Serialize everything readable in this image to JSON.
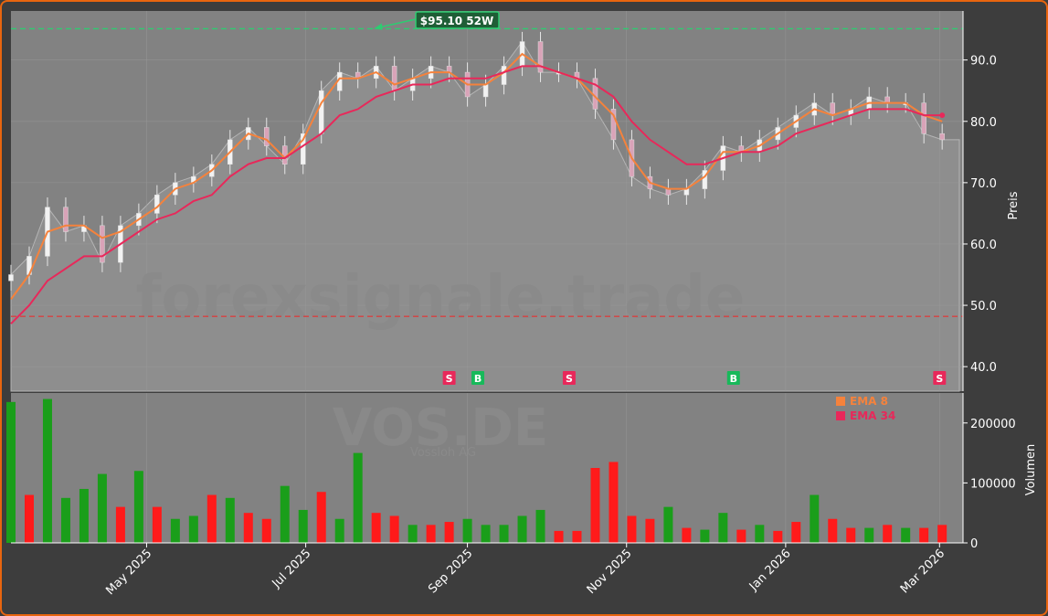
{
  "chart_data": [
    {
      "type": "candlestick",
      "title": "",
      "ylabel": "Preis",
      "ylim": [
        36,
        98
      ],
      "yticks": [
        40,
        50,
        60,
        70,
        80,
        90
      ],
      "ytick_labels": [
        "40.0",
        "50.0",
        "60.0",
        "70.0",
        "80.0",
        "90.0"
      ],
      "xticks": [
        "2025-05-01",
        "2025-07-01",
        "2025-09-01",
        "2025-11-01",
        "2026-01-01",
        "2026-03-01"
      ],
      "xtick_labels": [
        "May 2025",
        "Jul 2025",
        "Sep 2025",
        "Nov 2025",
        "Jan 2026",
        "Mar 2026"
      ],
      "xlim": [
        "2025-03-10",
        "2026-03-10"
      ],
      "grid": true,
      "watermark": "forexsignale.trade",
      "high_52w": {
        "value": 95.1,
        "label": "$95.10 52W",
        "date": "2025-07-27",
        "color": "#2ecc71"
      },
      "low_52w": {
        "value": 48.2,
        "color": "#d84040"
      },
      "close_price": {
        "dates": [
          "2025-03-10",
          "2025-03-17",
          "2025-03-24",
          "2025-03-31",
          "2025-04-07",
          "2025-04-14",
          "2025-04-21",
          "2025-04-28",
          "2025-05-05",
          "2025-05-12",
          "2025-05-19",
          "2025-05-26",
          "2025-06-02",
          "2025-06-09",
          "2025-06-16",
          "2025-06-23",
          "2025-06-30",
          "2025-07-07",
          "2025-07-14",
          "2025-07-21",
          "2025-07-28",
          "2025-08-04",
          "2025-08-11",
          "2025-08-18",
          "2025-08-25",
          "2025-09-01",
          "2025-09-08",
          "2025-09-15",
          "2025-09-22",
          "2025-09-29",
          "2025-10-06",
          "2025-10-13",
          "2025-10-20",
          "2025-10-27",
          "2025-11-03",
          "2025-11-10",
          "2025-11-17",
          "2025-11-24",
          "2025-12-01",
          "2025-12-08",
          "2025-12-15",
          "2025-12-22",
          "2025-12-29",
          "2026-01-05",
          "2026-01-12",
          "2026-01-19",
          "2026-01-26",
          "2026-02-02",
          "2026-02-09",
          "2026-02-16",
          "2026-02-23",
          "2026-03-02"
        ],
        "values": [
          55,
          58,
          66,
          62,
          63,
          57,
          63,
          65,
          68,
          70,
          71,
          73,
          77,
          79,
          76,
          73,
          78,
          85,
          88,
          87,
          89,
          85,
          87,
          89,
          88,
          84,
          86,
          89,
          93,
          88,
          88,
          87,
          82,
          77,
          71,
          69,
          68,
          69,
          72,
          76,
          75,
          77,
          79,
          81,
          83,
          81,
          82,
          84,
          83,
          83,
          78,
          77
        ]
      },
      "series": [
        {
          "name": "EMA 8",
          "color": "#f5823c",
          "values": [
            51,
            55,
            62,
            63,
            63,
            61,
            62,
            64,
            66,
            69,
            70,
            72,
            75,
            78,
            77,
            74,
            77,
            83,
            87,
            87,
            88,
            86,
            87,
            88,
            88,
            86,
            86,
            88,
            91,
            89,
            88,
            87,
            84,
            81,
            74,
            70,
            69,
            69,
            71,
            75,
            75,
            76,
            78,
            80,
            82,
            81,
            82,
            83,
            83,
            83,
            81,
            80
          ]
        },
        {
          "name": "EMA 34",
          "color": "#e8285a",
          "values": [
            47,
            50,
            54,
            56,
            58,
            58,
            60,
            62,
            64,
            65,
            67,
            68,
            71,
            73,
            74,
            74,
            76,
            78,
            81,
            82,
            84,
            85,
            86,
            86,
            87,
            87,
            87,
            88,
            89,
            89,
            88,
            87,
            86,
            84,
            80,
            77,
            75,
            73,
            73,
            74,
            75,
            75,
            76,
            78,
            79,
            80,
            81,
            82,
            82,
            82,
            81,
            81
          ]
        }
      ],
      "signals": [
        {
          "date": "2025-08-25",
          "type": "S",
          "color": "#e8285a"
        },
        {
          "date": "2025-09-05",
          "type": "B",
          "color": "#17b95a"
        },
        {
          "date": "2025-10-10",
          "type": "S",
          "color": "#e8285a"
        },
        {
          "date": "2025-12-12",
          "type": "B",
          "color": "#17b95a"
        },
        {
          "date": "2026-03-01",
          "type": "S",
          "color": "#e8285a"
        }
      ]
    },
    {
      "type": "bar",
      "title": "",
      "ylabel": "Volumen",
      "ylim": [
        0,
        250000
      ],
      "yticks": [
        0,
        100000,
        200000
      ],
      "ytick_labels": [
        "0",
        "100000",
        "200000"
      ],
      "watermark": "VOS.DE",
      "watermark_sub": "Vossloh AG",
      "up_color": "#1a9e1a",
      "down_color": "#ff1a1a",
      "dates": [
        "2025-03-10",
        "2025-03-17",
        "2025-03-24",
        "2025-03-31",
        "2025-04-07",
        "2025-04-14",
        "2025-04-21",
        "2025-04-28",
        "2025-05-05",
        "2025-05-12",
        "2025-05-19",
        "2025-05-26",
        "2025-06-02",
        "2025-06-09",
        "2025-06-16",
        "2025-06-23",
        "2025-06-30",
        "2025-07-07",
        "2025-07-14",
        "2025-07-21",
        "2025-07-28",
        "2025-08-04",
        "2025-08-11",
        "2025-08-18",
        "2025-08-25",
        "2025-09-01",
        "2025-09-08",
        "2025-09-15",
        "2025-09-22",
        "2025-09-29",
        "2025-10-06",
        "2025-10-13",
        "2025-10-20",
        "2025-10-27",
        "2025-11-03",
        "2025-11-10",
        "2025-11-17",
        "2025-11-24",
        "2025-12-01",
        "2025-12-08",
        "2025-12-15",
        "2025-12-22",
        "2025-12-29",
        "2026-01-05",
        "2026-01-12",
        "2026-01-19",
        "2026-01-26",
        "2026-02-02",
        "2026-02-09",
        "2026-02-16",
        "2026-02-23",
        "2026-03-02"
      ],
      "values": [
        235000,
        80000,
        240000,
        75000,
        90000,
        115000,
        60000,
        120000,
        60000,
        40000,
        45000,
        80000,
        75000,
        50000,
        40000,
        95000,
        55000,
        85000,
        40000,
        150000,
        50000,
        45000,
        30000,
        30000,
        35000,
        40000,
        30000,
        30000,
        45000,
        55000,
        20000,
        20000,
        125000,
        135000,
        45000,
        40000,
        60000,
        25000,
        22000,
        50000,
        22000,
        30000,
        20000,
        35000,
        80000,
        40000,
        25000,
        25000,
        30000,
        25000,
        25000,
        30000
      ],
      "up": [
        true,
        false,
        true,
        true,
        true,
        true,
        false,
        true,
        false,
        true,
        true,
        false,
        true,
        false,
        false,
        true,
        true,
        false,
        true,
        true,
        false,
        false,
        true,
        false,
        false,
        true,
        true,
        true,
        true,
        true,
        false,
        false,
        false,
        false,
        false,
        false,
        true,
        false,
        true,
        true,
        false,
        true,
        false,
        false,
        true,
        false,
        false,
        true,
        false,
        true,
        false,
        false
      ]
    }
  ],
  "legend": {
    "placement": "top-right of volume panel",
    "items": [
      {
        "label": "EMA 8",
        "color": "#f5823c"
      },
      {
        "label": "EMA 34",
        "color": "#e8285a"
      }
    ]
  }
}
